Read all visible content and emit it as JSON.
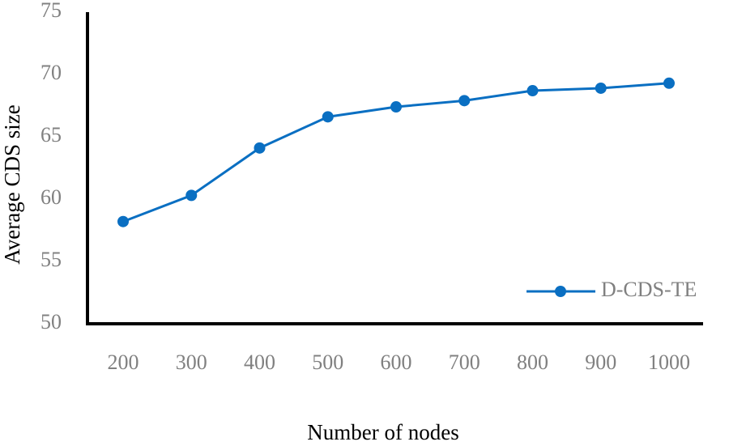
{
  "chart_data": {
    "type": "line",
    "x_label": "Number of nodes",
    "y_label": "Average CDS size",
    "categories": [
      "200",
      "300",
      "400",
      "500",
      "600",
      "700",
      "800",
      "900",
      "1000"
    ],
    "series": [
      {
        "name": "D-CDS-TE",
        "color": "#0a6fc2",
        "values": [
          58.2,
          60.3,
          64.1,
          66.6,
          67.4,
          67.9,
          68.7,
          68.9,
          69.3
        ]
      }
    ],
    "ylim": [
      50,
      75
    ],
    "yticks": [
      50,
      55,
      60,
      65,
      70,
      75
    ],
    "grid": false,
    "legend": "lower right"
  }
}
